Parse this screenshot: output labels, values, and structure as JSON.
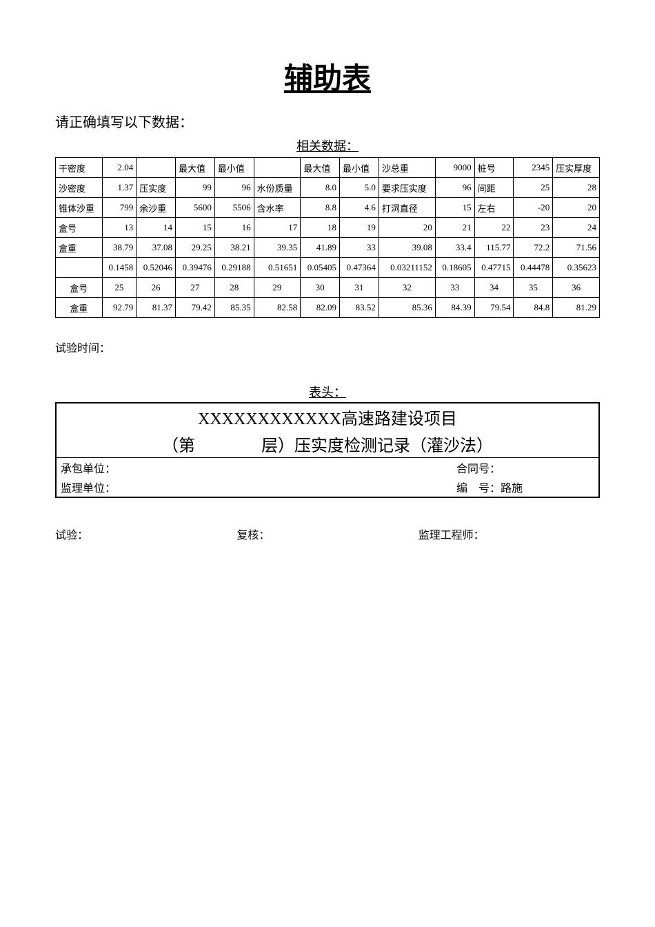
{
  "title": "辅助表",
  "instruction": "请正确填写以下数据：",
  "section_data_label": "相关数据：",
  "trial_time_label": "试验时间：",
  "data_rows": [
    [
      {
        "t": "干密度",
        "cls": "label-cell"
      },
      {
        "t": "2.04",
        "cls": "num-cell"
      },
      {
        "t": "",
        "cls": "num-cell"
      },
      {
        "t": "最大值",
        "cls": "label-cell"
      },
      {
        "t": "最小值",
        "cls": "label-cell"
      },
      {
        "t": "",
        "cls": "num-cell"
      },
      {
        "t": "最大值",
        "cls": "label-cell"
      },
      {
        "t": "最小值",
        "cls": "label-cell"
      },
      {
        "t": "沙总重",
        "cls": "label-cell"
      },
      {
        "t": "9000",
        "cls": "num-cell"
      },
      {
        "t": "桩号",
        "cls": "label-cell"
      },
      {
        "t": "2345",
        "cls": "num-cell"
      },
      {
        "t": "压实厚度",
        "cls": "label-cell"
      }
    ],
    [
      {
        "t": "沙密度",
        "cls": "label-cell"
      },
      {
        "t": "1.37",
        "cls": "num-cell"
      },
      {
        "t": "压实度",
        "cls": "label-cell"
      },
      {
        "t": "99",
        "cls": "num-cell"
      },
      {
        "t": "96",
        "cls": "num-cell"
      },
      {
        "t": "水份质量",
        "cls": "label-cell"
      },
      {
        "t": "8.0",
        "cls": "num-cell"
      },
      {
        "t": "5.0",
        "cls": "num-cell"
      },
      {
        "t": "要求压实度",
        "cls": "label-cell"
      },
      {
        "t": "96",
        "cls": "num-cell"
      },
      {
        "t": "间距",
        "cls": "label-cell"
      },
      {
        "t": "25",
        "cls": "num-cell"
      },
      {
        "t": "28",
        "cls": "num-cell"
      }
    ],
    [
      {
        "t": "锥体沙重",
        "cls": "label-cell"
      },
      {
        "t": "799",
        "cls": "num-cell"
      },
      {
        "t": "余沙重",
        "cls": "label-cell"
      },
      {
        "t": "5600",
        "cls": "num-cell"
      },
      {
        "t": "5506",
        "cls": "num-cell"
      },
      {
        "t": "含水率",
        "cls": "label-cell"
      },
      {
        "t": "8.8",
        "cls": "num-cell"
      },
      {
        "t": "4.6",
        "cls": "num-cell"
      },
      {
        "t": "打洞直径",
        "cls": "label-cell"
      },
      {
        "t": "15",
        "cls": "num-cell"
      },
      {
        "t": "左右",
        "cls": "label-cell"
      },
      {
        "t": "-20",
        "cls": "num-cell"
      },
      {
        "t": "20",
        "cls": "num-cell"
      }
    ],
    [
      {
        "t": "盒号",
        "cls": "label-cell"
      },
      {
        "t": "13",
        "cls": "num-cell"
      },
      {
        "t": "14",
        "cls": "num-cell"
      },
      {
        "t": "15",
        "cls": "num-cell"
      },
      {
        "t": "16",
        "cls": "num-cell"
      },
      {
        "t": "17",
        "cls": "num-cell"
      },
      {
        "t": "18",
        "cls": "num-cell"
      },
      {
        "t": "19",
        "cls": "num-cell"
      },
      {
        "t": "20",
        "cls": "num-cell"
      },
      {
        "t": "21",
        "cls": "num-cell"
      },
      {
        "t": "22",
        "cls": "num-cell"
      },
      {
        "t": "23",
        "cls": "num-cell"
      },
      {
        "t": "24",
        "cls": "num-cell"
      }
    ],
    [
      {
        "t": "盒重",
        "cls": "label-cell"
      },
      {
        "t": "38.79",
        "cls": "num-cell"
      },
      {
        "t": "37.08",
        "cls": "num-cell"
      },
      {
        "t": "29.25",
        "cls": "num-cell"
      },
      {
        "t": "38.21",
        "cls": "num-cell"
      },
      {
        "t": "39.35",
        "cls": "num-cell"
      },
      {
        "t": "41.89",
        "cls": "num-cell"
      },
      {
        "t": "33",
        "cls": "num-cell"
      },
      {
        "t": "39.08",
        "cls": "num-cell"
      },
      {
        "t": "33.4",
        "cls": "num-cell"
      },
      {
        "t": "115.77",
        "cls": "num-cell"
      },
      {
        "t": "72.2",
        "cls": "num-cell"
      },
      {
        "t": "71.56",
        "cls": "num-cell"
      }
    ],
    [
      {
        "t": "",
        "cls": "label-cell"
      },
      {
        "t": "0.1458",
        "cls": "num-cell"
      },
      {
        "t": "0.52046",
        "cls": "num-cell"
      },
      {
        "t": "0.39476",
        "cls": "num-cell"
      },
      {
        "t": "0.29188",
        "cls": "num-cell"
      },
      {
        "t": "0.51651",
        "cls": "num-cell"
      },
      {
        "t": "0.05405",
        "cls": "num-cell"
      },
      {
        "t": "0.47364",
        "cls": "num-cell"
      },
      {
        "t": "0.03211152",
        "cls": "num-cell"
      },
      {
        "t": "0.18605",
        "cls": "num-cell"
      },
      {
        "t": "0.47715",
        "cls": "num-cell"
      },
      {
        "t": "0.44478",
        "cls": "num-cell"
      },
      {
        "t": "0.35623",
        "cls": "num-cell"
      }
    ],
    [
      {
        "t": "盒号",
        "cls": "center-cell"
      },
      {
        "t": "25",
        "cls": "center-cell"
      },
      {
        "t": "26",
        "cls": "center-cell"
      },
      {
        "t": "27",
        "cls": "center-cell"
      },
      {
        "t": "28",
        "cls": "center-cell"
      },
      {
        "t": "29",
        "cls": "center-cell"
      },
      {
        "t": "30",
        "cls": "center-cell"
      },
      {
        "t": "31",
        "cls": "center-cell"
      },
      {
        "t": "32",
        "cls": "center-cell"
      },
      {
        "t": "33",
        "cls": "center-cell"
      },
      {
        "t": "34",
        "cls": "center-cell"
      },
      {
        "t": "35",
        "cls": "center-cell"
      },
      {
        "t": "36",
        "cls": "center-cell"
      }
    ],
    [
      {
        "t": "盒重",
        "cls": "center-cell"
      },
      {
        "t": "92.79",
        "cls": "num-cell"
      },
      {
        "t": "81.37",
        "cls": "num-cell"
      },
      {
        "t": "79.42",
        "cls": "num-cell"
      },
      {
        "t": "85.35",
        "cls": "num-cell"
      },
      {
        "t": "82.58",
        "cls": "num-cell"
      },
      {
        "t": "82.09",
        "cls": "num-cell"
      },
      {
        "t": "83.52",
        "cls": "num-cell"
      },
      {
        "t": "85.36",
        "cls": "num-cell"
      },
      {
        "t": "84.39",
        "cls": "num-cell"
      },
      {
        "t": "79.54",
        "cls": "num-cell"
      },
      {
        "t": "84.8",
        "cls": "num-cell"
      },
      {
        "t": "81.29",
        "cls": "num-cell"
      }
    ]
  ],
  "header_section_label": "表头：",
  "header": {
    "project_line": "XXXXXXXXXXXX高速路建设项目",
    "layer_line": "（第　　　　层）压实度检测记录（灌沙法）",
    "contractor_label": "承包单位：",
    "contract_no_label": "合同号：",
    "supervisor_label": "监理单位：",
    "doc_no_label": "编　号：",
    "doc_no_value": "路施"
  },
  "footer": {
    "test_label": "试验：",
    "review_label": "复核：",
    "engineer_label": "监理工程师："
  }
}
